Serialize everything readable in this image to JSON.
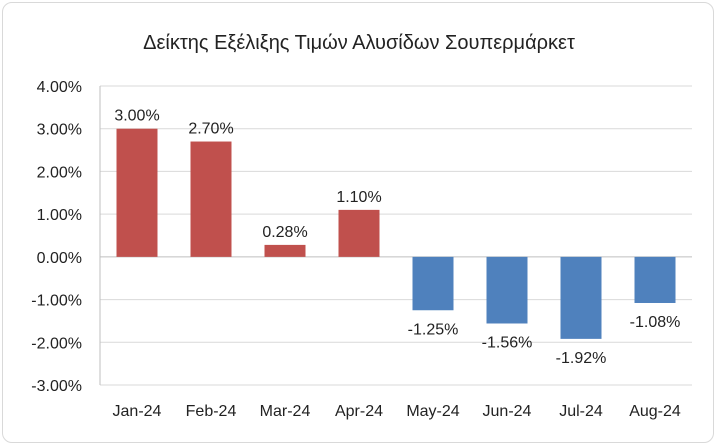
{
  "chart_data": {
    "type": "bar",
    "title": "Δείκτης Εξέλιξης Τιμών Αλυσίδων Σουπερμάρκετ",
    "xlabel": "",
    "ylabel": "",
    "categories": [
      "Jan-24",
      "Feb-24",
      "Mar-24",
      "Apr-24",
      "May-24",
      "Jun-24",
      "Jul-24",
      "Aug-24"
    ],
    "values": [
      3.0,
      2.7,
      0.28,
      1.1,
      -1.25,
      -1.56,
      -1.92,
      -1.08
    ],
    "data_labels": [
      "3.00%",
      "2.70%",
      "0.28%",
      "1.10%",
      "-1.25%",
      "-1.56%",
      "-1.92%",
      "-1.08%"
    ],
    "ylim": [
      -3,
      4
    ],
    "yticks": [
      4,
      3,
      2,
      1,
      0,
      -1,
      -2,
      -3
    ],
    "ytick_labels": [
      "4.00%",
      "3.00%",
      "2.00%",
      "1.00%",
      "0.00%",
      "-1.00%",
      "-2.00%",
      "-3.00%"
    ],
    "grid": true,
    "legend": "none",
    "colors": {
      "positive": "#c0504d",
      "negative": "#4f81bd",
      "grid": "#d9d9d9",
      "axis": "#bfbfbf"
    }
  }
}
